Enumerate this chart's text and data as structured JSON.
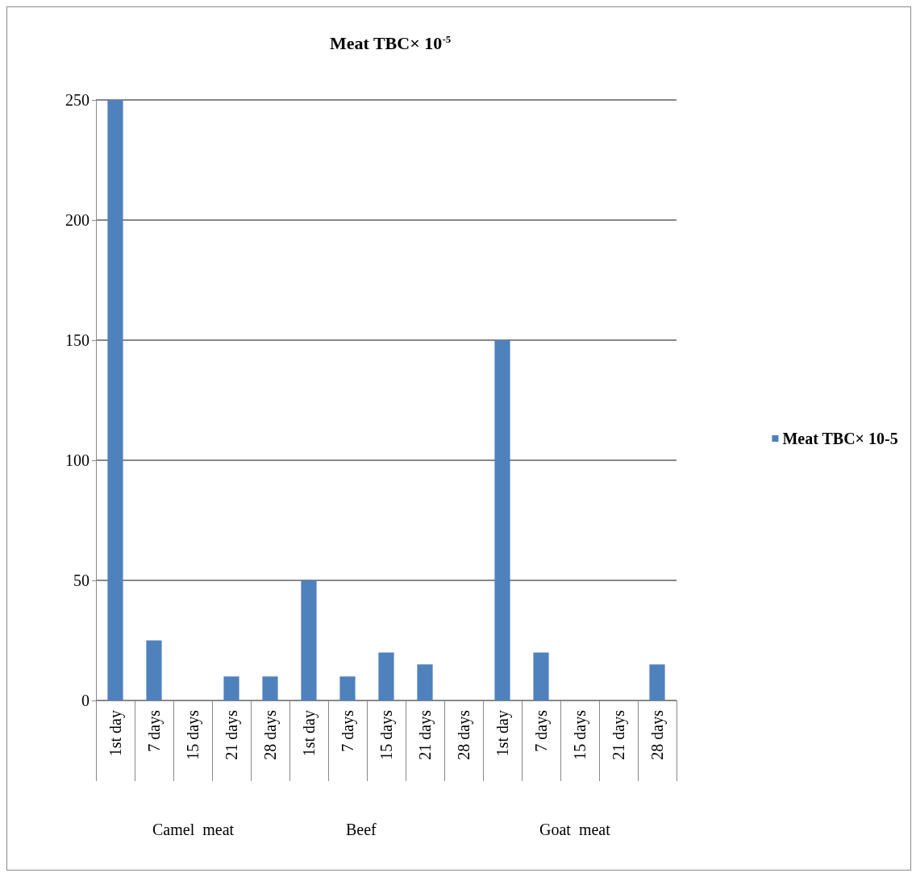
{
  "chart_data": {
    "type": "bar",
    "title": "Meat TBC× 10$^{-5}$",
    "categories": [
      "1st day",
      "7 days",
      "15 days",
      "21 days",
      "28 days",
      "1st day",
      "7 days",
      "15 days",
      "21 days",
      "28 days",
      "1st day",
      "7 days",
      "15 days",
      "21 days",
      "28 days"
    ],
    "series": [
      {
        "name": "Meat TBC× 10-5",
        "color": "#4f81bd",
        "values": [
          250,
          25,
          0,
          10,
          10,
          50,
          10,
          20,
          15,
          0,
          150,
          20,
          0,
          0,
          15
        ]
      }
    ],
    "ylim": [
      0,
      250
    ],
    "yticks": [
      0,
      50,
      100,
      150,
      200,
      250
    ],
    "grid": "y",
    "legend": "right",
    "annotations": [
      "Camel  meat",
      "Beef",
      "Goat  meat"
    ]
  }
}
